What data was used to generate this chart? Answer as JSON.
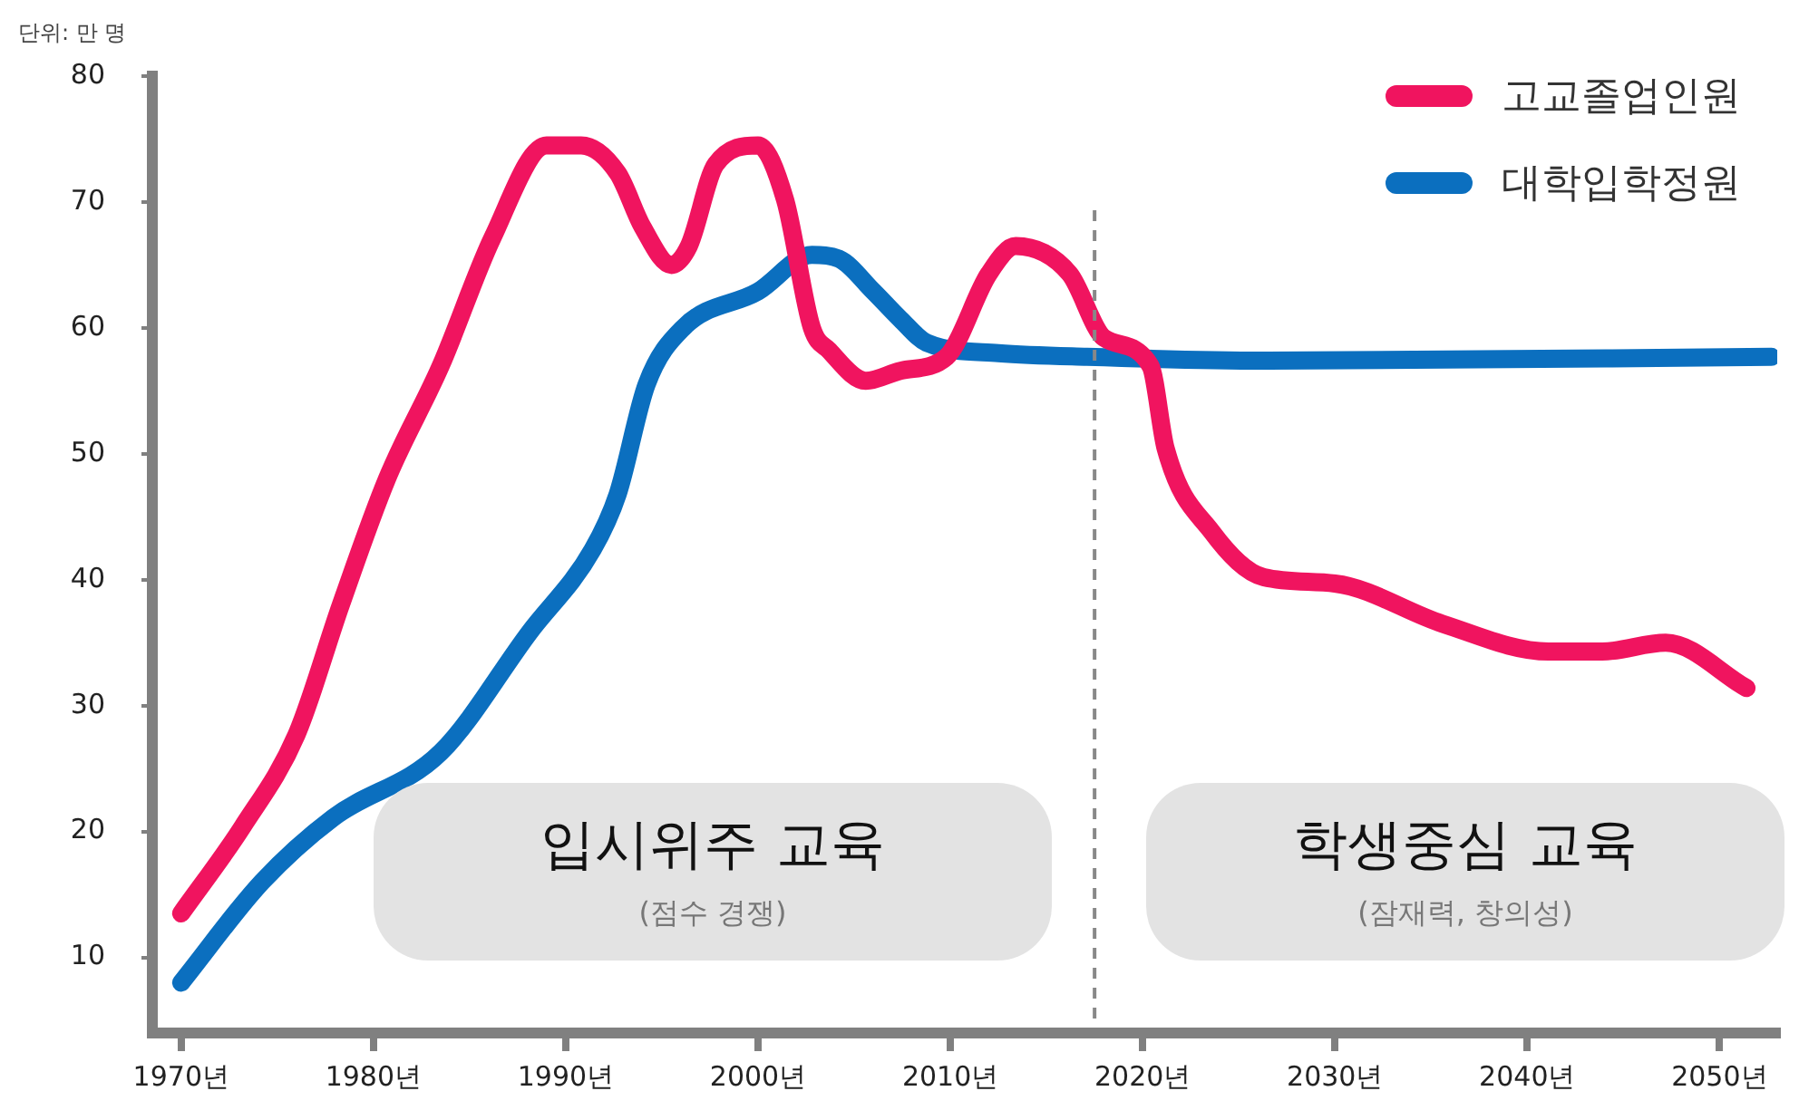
{
  "chart_data": {
    "type": "line",
    "annotations": [
      "단위: 만 명",
      "입시위주 교육",
      "(점수 경쟁)",
      "학생중심 교육",
      "(잠재력, 창의성)"
    ],
    "xlim": [
      1968.5,
      2053
    ],
    "xticks": [
      {
        "value": 1970,
        "label": "1970년"
      },
      {
        "value": 1980,
        "label": "1980년"
      },
      {
        "value": 1990,
        "label": "1990년"
      },
      {
        "value": 2000,
        "label": "2000년"
      },
      {
        "value": 2010,
        "label": "2010년"
      },
      {
        "value": 2020,
        "label": "2020년"
      },
      {
        "value": 2030,
        "label": "2030년"
      },
      {
        "value": 2040,
        "label": "2040년"
      },
      {
        "value": 2050,
        "label": "2050년"
      }
    ],
    "ylim": [
      4,
      80
    ],
    "yticks": [
      10,
      20,
      30,
      40,
      50,
      60,
      70,
      80
    ],
    "series": [
      {
        "name": "고교졸업인원",
        "color": "#f0145f",
        "x": [
          1970,
          1973.2,
          1976,
          1978.3,
          1980.7,
          1983.5,
          1986.2,
          1989,
          1990.8,
          1992.7,
          1994,
          1995.5,
          1996.4,
          1997.8,
          2000,
          2001.4,
          2002.8,
          2003.7,
          2005.6,
          2007.4,
          2009.8,
          2012,
          2013.4,
          2016.2,
          2018,
          2020.4,
          2021.2,
          2023.6,
          2026.3,
          2030,
          2035.6,
          2041.1,
          2043.9,
          2047.2,
          2051.4
        ],
        "values": [
          13.5,
          20.4,
          27.7,
          38,
          48,
          57,
          67.2,
          74.5,
          74.5,
          72.3,
          68,
          65,
          66.5,
          73,
          74.5,
          70.2,
          60,
          58.2,
          55.8,
          56.6,
          57.7,
          64.3,
          66.5,
          64.3,
          59.2,
          57,
          50.4,
          43.8,
          40.2,
          39.7,
          36.5,
          34.3,
          34.3,
          35,
          31.4
        ]
      },
      {
        "name": "대학입학정원",
        "color": "#0b6fbf",
        "x": [
          1970,
          1974.2,
          1977.9,
          1983.5,
          1988.1,
          1991.4,
          1992.7,
          1994.2,
          1996.1,
          2000,
          2002.8,
          2004.2,
          2006,
          2007.4,
          2008.8,
          2012.5,
          2017.1,
          2026.3,
          2052.7
        ],
        "values": [
          8,
          16,
          21.1,
          26.3,
          35.8,
          42.4,
          46.8,
          55.5,
          60,
          62.9,
          65.8,
          65.5,
          62.9,
          60.7,
          58.8,
          58,
          57.7,
          57.4,
          57.7
        ]
      }
    ],
    "ref_lines": [
      {
        "axis": "x",
        "value": 2017.5,
        "color": "#888888",
        "line_style": "dashed"
      }
    ],
    "grid": false,
    "legend": "top right",
    "marker": "none",
    "line_style": "solid"
  }
}
